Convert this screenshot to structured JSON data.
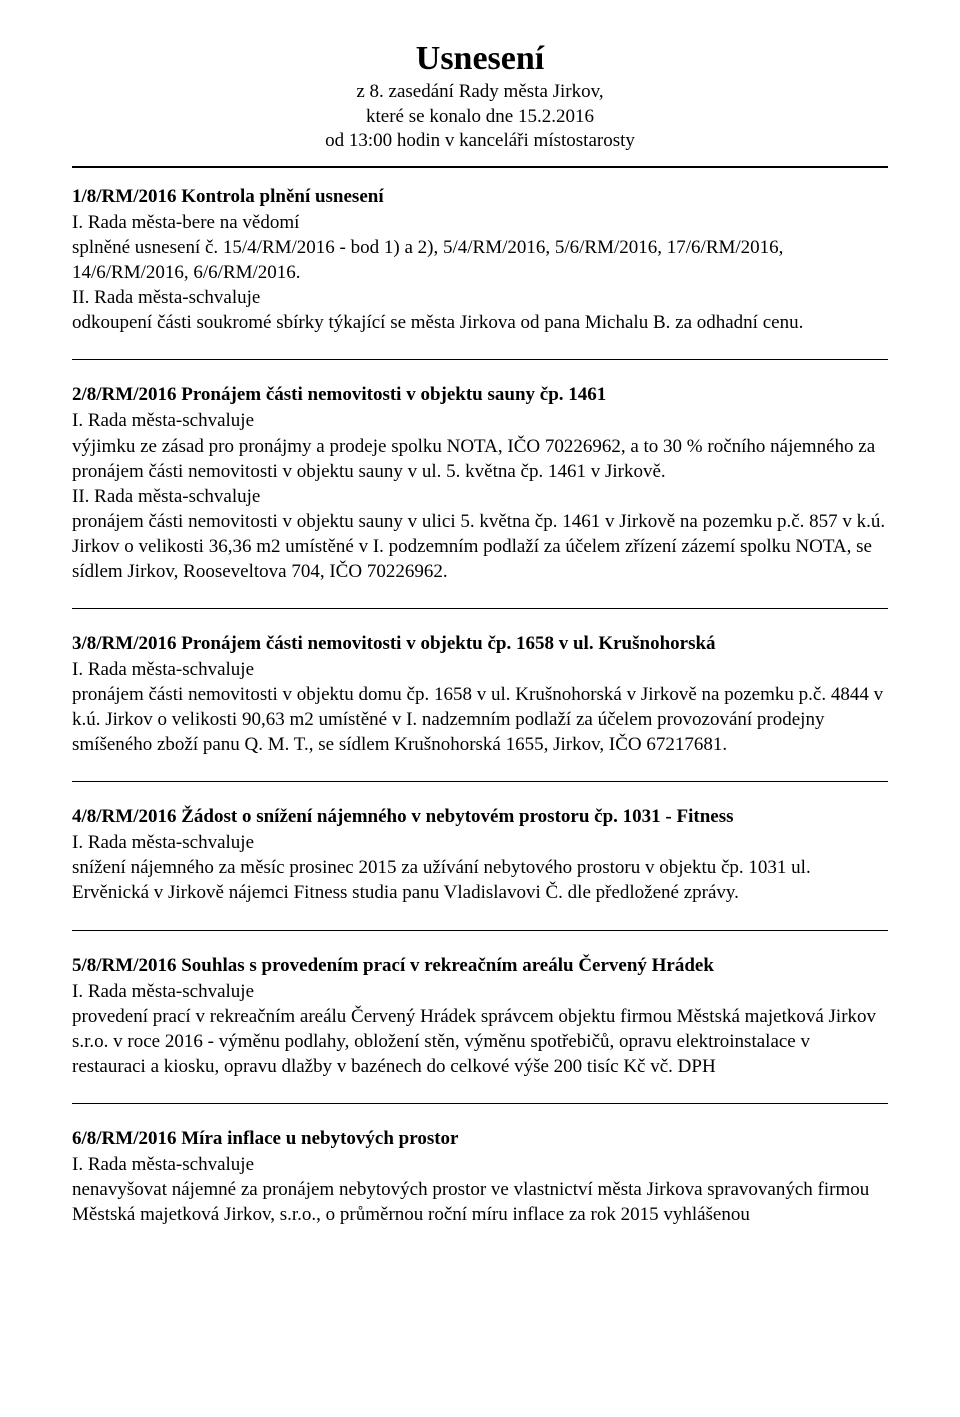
{
  "header": {
    "title": "Usnesení",
    "line1": "z 8. zasedání Rady města Jirkov,",
    "line2": "které se konalo dne 15.2.2016",
    "line3": "od 13:00 hodin v kanceláři místostarosty"
  },
  "label_schvaluje_I": "I. Rada města-schvaluje",
  "label_schvaluje_II": "II. Rada města-schvaluje",
  "sections": [
    {
      "heading": "1/8/RM/2016 Kontrola plnění usnesení",
      "p1_label": "I. Rada města-bere na vědomí",
      "p1_body": "splněné usnesení č. 15/4/RM/2016 - bod 1) a 2),  5/4/RM/2016,  5/6/RM/2016,  17/6/RM/2016,  14/6/RM/2016,  6/6/RM/2016.",
      "p2_body": "odkoupení části soukromé sbírky týkající se města Jirkova od pana Michalu B. za odhadní cenu."
    },
    {
      "heading": "2/8/RM/2016 Pronájem části nemovitosti v objektu sauny čp. 1461",
      "p1_body": "výjimku ze zásad pro pronájmy a prodeje spolku NOTA, IČO 70226962, a to 30 % ročního nájemného za pronájem části nemovitosti v objektu sauny v ul. 5. května čp. 1461 v Jirkově.",
      "p2_body": "pronájem části nemovitosti v objektu sauny v ulici 5. května čp. 1461 v Jirkově na pozemku  p.č. 857 v k.ú. Jirkov o velikosti 36,36 m2 umístěné v I. podzemním podlaží za účelem zřízení zázemí spolku NOTA, se sídlem Jirkov, Rooseveltova 704, IČO 70226962."
    },
    {
      "heading": "3/8/RM/2016 Pronájem části nemovitosti v objektu čp. 1658 v ul. Krušnohorská",
      "p1_body": "pronájem části nemovitosti v objektu domu  čp. 1658 v ul. Krušnohorská v Jirkově na pozemku p.č. 4844 v k.ú. Jirkov o velikosti 90,63 m2 umístěné v I. nadzemním podlaží  za účelem provozování prodejny smíšeného zboží panu Q. M. T., se sídlem Krušnohorská 1655, Jirkov, IČO 67217681."
    },
    {
      "heading": "4/8/RM/2016 Žádost o snížení nájemného v nebytovém prostoru čp. 1031 - Fitness",
      "p1_body": "snížení nájemného za měsíc prosinec 2015 za užívání nebytového prostoru v objektu čp. 1031 ul. Ervěnická v Jirkově nájemci Fitness studia panu Vladislavovi Č.  dle předložené zprávy."
    },
    {
      "heading": "5/8/RM/2016 Souhlas s provedením prací v rekreačním areálu Červený Hrádek",
      "p1_body": "provedení prací v rekreačním areálu Červený Hrádek správcem objektu firmou Městská majetková Jirkov s.r.o. v roce 2016 - výměnu podlahy, obložení stěn, výměnu spotřebičů, opravu elektroinstalace v restauraci a kiosku, opravu dlažby v bazénech do celkové výše 200 tisíc Kč vč. DPH"
    },
    {
      "heading": "6/8/RM/2016 Míra inflace u nebytových prostor",
      "p1_body": "nenavyšovat nájemné za pronájem nebytových prostor ve vlastnictví města Jirkova spravovaných firmou Městská majetková Jirkov, s.r.o., o průměrnou roční míru inflace za rok 2015 vyhlášenou"
    }
  ]
}
